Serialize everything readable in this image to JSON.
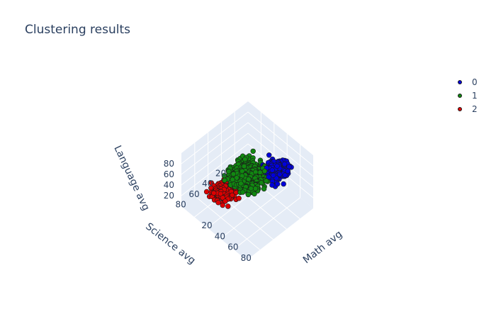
{
  "chart_data": {
    "type": "scatter",
    "title": "Clustering results",
    "axes": {
      "x": {
        "label": "Math avg",
        "ticks": [
          20,
          40,
          60,
          80
        ],
        "range": [
          0,
          100
        ]
      },
      "y": {
        "label": "Science avg",
        "ticks": [
          20,
          40,
          60,
          80
        ],
        "range": [
          0,
          100
        ]
      },
      "z": {
        "label": "Language avg",
        "ticks": [
          20,
          40,
          60,
          80
        ],
        "range": [
          0,
          100
        ]
      }
    },
    "legend_position": "top-right",
    "series": [
      {
        "name": "0",
        "color": "#0000dd"
      },
      {
        "name": "1",
        "color": "#118811"
      },
      {
        "name": "2",
        "color": "#dd0000"
      }
    ]
  }
}
